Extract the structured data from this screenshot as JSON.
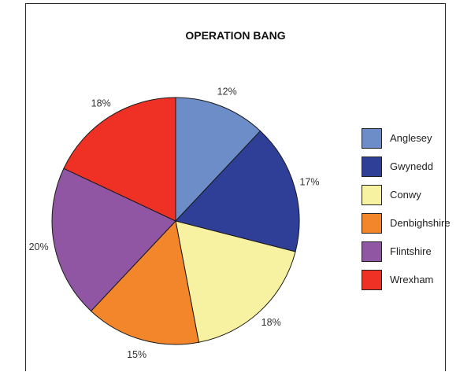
{
  "chart_data": {
    "type": "pie",
    "title": "OPERATION BANG",
    "categories": [
      "Anglesey",
      "Gwynedd",
      "Conwy",
      "Denbighshire",
      "Flintshire",
      "Wrexham"
    ],
    "values": [
      12,
      17,
      18,
      15,
      20,
      18
    ],
    "labels": [
      "12%",
      "17%",
      "18%",
      "15%",
      "20%",
      "18%"
    ],
    "colors": [
      "#6d8dc9",
      "#2f3f98",
      "#f7f2a1",
      "#f3862b",
      "#9055a3",
      "#ee3124"
    ],
    "start_angle": "12 o'clock",
    "direction": "clockwise",
    "legend_position": "right"
  }
}
